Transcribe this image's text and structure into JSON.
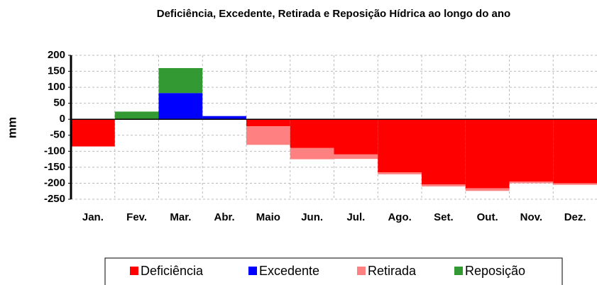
{
  "chart_data": {
    "type": "stacked_bar",
    "title": "Deficiência, Excedente, Retirada e Reposição Hídrica ao longo do ano",
    "y_label": "mm",
    "categories": [
      "Jan.",
      "Fev.",
      "Mar.",
      "Abr.",
      "Maio",
      "Jun.",
      "Jul.",
      "Ago.",
      "Set.",
      "Out.",
      "Nov.",
      "Dez."
    ],
    "series": [
      {
        "name": "Deficiência",
        "color": "#ff0000",
        "values": [
          -85,
          0,
          0,
          0,
          -22,
          -90,
          -110,
          -166,
          -204,
          -216,
          -195,
          -200
        ]
      },
      {
        "name": "Excedente",
        "color": "#0000ff",
        "values": [
          0,
          0,
          82,
          10,
          0,
          0,
          0,
          0,
          0,
          0,
          0,
          0
        ]
      },
      {
        "name": "Retirada",
        "color": "#ff8080",
        "values": [
          0,
          0,
          0,
          0,
          -58,
          -35,
          -14,
          -6,
          -6,
          -8,
          -5,
          -5
        ]
      },
      {
        "name": "Reposição",
        "color": "#339933",
        "values": [
          0,
          24,
          78,
          0,
          0,
          0,
          0,
          0,
          0,
          0,
          0,
          0
        ]
      }
    ],
    "ylim": [
      -250,
      200
    ],
    "yticks": [
      -250,
      -200,
      -150,
      -100,
      -50,
      0,
      50,
      100,
      150,
      200
    ],
    "grid": true,
    "legend": "bottom"
  }
}
